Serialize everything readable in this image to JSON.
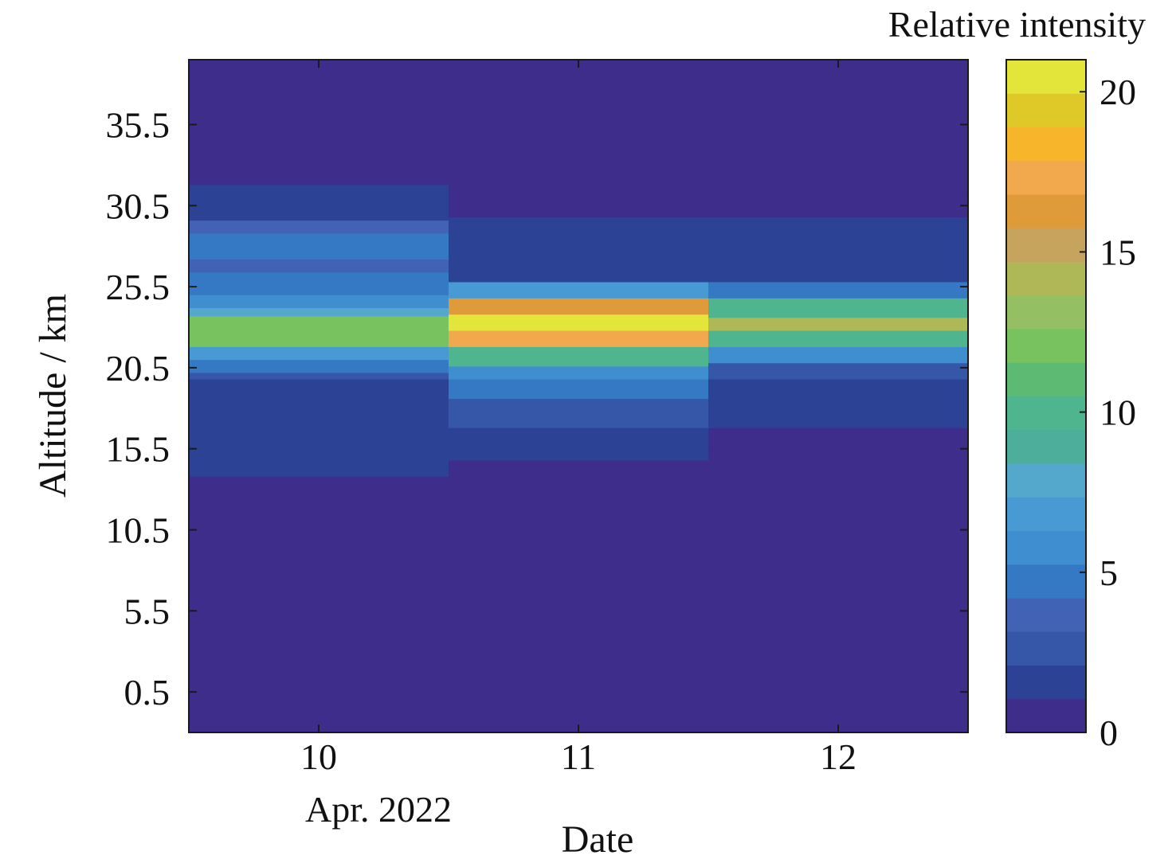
{
  "chart_data": {
    "type": "heatmap",
    "title": "",
    "xlabel": "Date",
    "ylabel": "Altitude / km",
    "x_secondary_label": "Apr. 2022",
    "x_categories": [
      "10",
      "11",
      "12"
    ],
    "ylim": [
      -2,
      39.5
    ],
    "yticks": [
      0.5,
      5.5,
      10.5,
      15.5,
      20.5,
      25.5,
      30.5,
      35.5
    ],
    "ytick_labels": [
      "0.5",
      "5.5",
      "10.5",
      "15.5",
      "20.5",
      "25.5",
      "30.5",
      "35.5"
    ],
    "colorbar": {
      "title": "Relative intensity",
      "range": [
        0,
        21
      ],
      "ticks": [
        0,
        5,
        10,
        15,
        20
      ],
      "tick_labels": [
        "0",
        "5",
        "10",
        "15",
        "20"
      ],
      "levels": 20,
      "colormap": [
        "#3e2d8b",
        "#2c4294",
        "#3656a8",
        "#4262b6",
        "#3579c4",
        "#3f8fd0",
        "#489ad5",
        "#53a8cc",
        "#4dae9c",
        "#4fb58e",
        "#5dba72",
        "#78c25f",
        "#95bf63",
        "#aeb856",
        "#c6a45e",
        "#df9a3a",
        "#f2a84d",
        "#f6b52a",
        "#dec928",
        "#e3e53a"
      ]
    },
    "columns": [
      {
        "date": "10",
        "cells": [
          {
            "y0": -2,
            "y1": 13.8,
            "value": 0
          },
          {
            "y0": 13.8,
            "y1": 19.8,
            "value": 2
          },
          {
            "y0": 19.8,
            "y1": 20.2,
            "value": 3
          },
          {
            "y0": 20.2,
            "y1": 21.0,
            "value": 5
          },
          {
            "y0": 21.0,
            "y1": 21.8,
            "value": 7
          },
          {
            "y0": 21.8,
            "y1": 23.7,
            "value": 12
          },
          {
            "y0": 23.7,
            "y1": 24.2,
            "value": 8
          },
          {
            "y0": 24.2,
            "y1": 25.0,
            "value": 6
          },
          {
            "y0": 25.0,
            "y1": 26.4,
            "value": 5
          },
          {
            "y0": 26.4,
            "y1": 27.2,
            "value": 4
          },
          {
            "y0": 27.2,
            "y1": 28.8,
            "value": 5
          },
          {
            "y0": 28.8,
            "y1": 29.6,
            "value": 4
          },
          {
            "y0": 29.6,
            "y1": 31.8,
            "value": 2
          },
          {
            "y0": 31.8,
            "y1": 32.6,
            "value": 1
          },
          {
            "y0": 32.6,
            "y1": 39.5,
            "value": 0
          }
        ]
      },
      {
        "date": "11",
        "cells": [
          {
            "y0": -2,
            "y1": 14.8,
            "value": 0
          },
          {
            "y0": 14.8,
            "y1": 16.8,
            "value": 2
          },
          {
            "y0": 16.8,
            "y1": 18.6,
            "value": 3
          },
          {
            "y0": 18.6,
            "y1": 19.8,
            "value": 5
          },
          {
            "y0": 19.8,
            "y1": 20.6,
            "value": 6
          },
          {
            "y0": 20.6,
            "y1": 21.8,
            "value": 10
          },
          {
            "y0": 21.8,
            "y1": 22.8,
            "value": 17
          },
          {
            "y0": 22.8,
            "y1": 23.8,
            "value": 20
          },
          {
            "y0": 23.8,
            "y1": 24.8,
            "value": 16
          },
          {
            "y0": 24.8,
            "y1": 25.8,
            "value": 7
          },
          {
            "y0": 25.8,
            "y1": 29.8,
            "value": 2
          },
          {
            "y0": 29.8,
            "y1": 31.4,
            "value": 1
          },
          {
            "y0": 31.4,
            "y1": 39.5,
            "value": 0
          }
        ]
      },
      {
        "date": "12",
        "cells": [
          {
            "y0": -2,
            "y1": 15.6,
            "value": 0
          },
          {
            "y0": 15.6,
            "y1": 16.8,
            "value": 1
          },
          {
            "y0": 16.8,
            "y1": 19.8,
            "value": 2
          },
          {
            "y0": 19.8,
            "y1": 20.8,
            "value": 3
          },
          {
            "y0": 20.8,
            "y1": 21.8,
            "value": 6
          },
          {
            "y0": 21.8,
            "y1": 22.8,
            "value": 10
          },
          {
            "y0": 22.8,
            "y1": 23.6,
            "value": 14
          },
          {
            "y0": 23.6,
            "y1": 24.8,
            "value": 10
          },
          {
            "y0": 24.8,
            "y1": 25.8,
            "value": 5
          },
          {
            "y0": 25.8,
            "y1": 29.8,
            "value": 2
          },
          {
            "y0": 29.8,
            "y1": 31.4,
            "value": 1
          },
          {
            "y0": 31.4,
            "y1": 39.5,
            "value": 0
          }
        ]
      }
    ]
  }
}
